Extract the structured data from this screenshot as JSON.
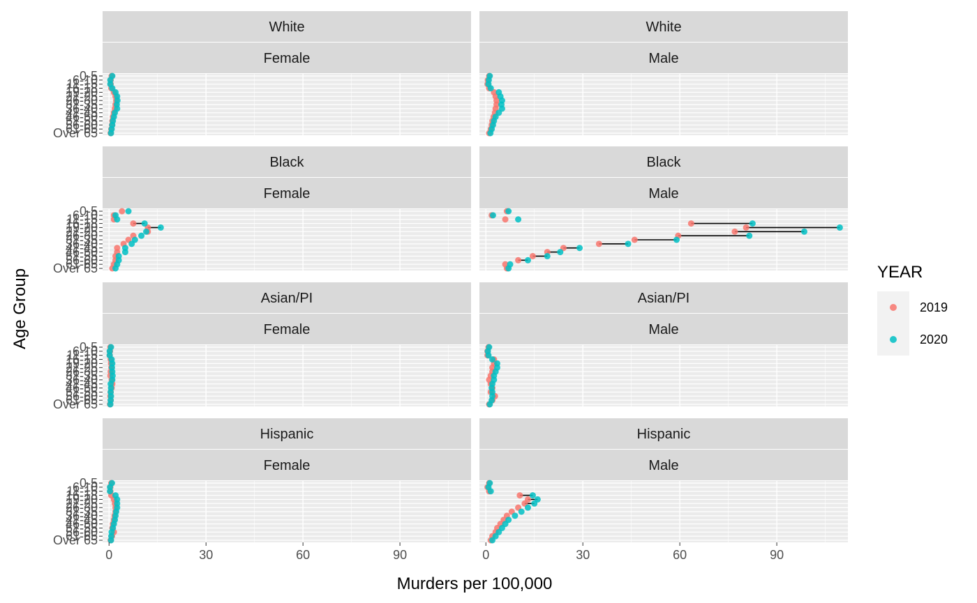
{
  "chart_data": {
    "type": "scatter",
    "facet_rows": [
      "White",
      "Black",
      "Asian/PI",
      "Hispanic"
    ],
    "facet_cols": [
      "Female",
      "Male"
    ],
    "xlabel": "Murders per 100,000",
    "ylabel": "Age Group",
    "xlim": [
      -2,
      112
    ],
    "x_ticks": [
      "0",
      "30",
      "60",
      "90"
    ],
    "x_tick_values": [
      0,
      30,
      60,
      90
    ],
    "age_groups": [
      "0-5",
      "6-10",
      "11-15",
      "16-18",
      "19-20",
      "21-25",
      "26-30",
      "31-35",
      "36-40",
      "41-45",
      "46-50",
      "51-55",
      "56-60",
      "61-65",
      "Over 65"
    ],
    "grid": true,
    "legend": {
      "title": "YEAR",
      "position": "right",
      "entries": [
        {
          "label": "2019",
          "color": "#F8766D"
        },
        {
          "label": "2020",
          "color": "#00BFC4"
        }
      ]
    },
    "panels": [
      {
        "race": "White",
        "sex": "Female",
        "y2019": [
          0.8,
          0.5,
          0.5,
          0.7,
          1.5,
          2.0,
          2.2,
          2.0,
          1.8,
          1.5,
          1.2,
          1.0,
          0.9,
          0.7,
          0.5
        ],
        "y2020": [
          1.0,
          0.4,
          0.4,
          1.0,
          2.0,
          2.5,
          2.6,
          2.4,
          2.5,
          1.8,
          1.5,
          1.2,
          1.0,
          0.8,
          0.6
        ]
      },
      {
        "race": "White",
        "sex": "Male",
        "y2019": [
          1.0,
          0.6,
          0.5,
          1.0,
          2.5,
          3.0,
          3.3,
          3.3,
          3.0,
          2.8,
          2.4,
          2.0,
          1.8,
          1.5,
          1.0
        ],
        "y2020": [
          1.2,
          0.9,
          0.8,
          1.5,
          4.0,
          4.5,
          5.0,
          4.8,
          5.0,
          4.0,
          3.0,
          2.5,
          2.2,
          1.8,
          1.4
        ]
      },
      {
        "race": "Black",
        "sex": "Female",
        "y2019": [
          4.0,
          1.5,
          1.5,
          7.5,
          12.0,
          12.0,
          7.5,
          6.0,
          4.5,
          2.5,
          2.5,
          2.0,
          2.0,
          1.5,
          1.0
        ],
        "y2020": [
          6.0,
          2.0,
          2.5,
          11.0,
          16.0,
          11.5,
          10.0,
          8.0,
          7.0,
          5.0,
          5.0,
          3.0,
          3.0,
          2.5,
          2.0
        ],
        "connectors": [
          3,
          4
        ]
      },
      {
        "race": "Black",
        "sex": "Male",
        "y2019": [
          6.5,
          1.8,
          6.0,
          63.5,
          80.5,
          77.0,
          59.5,
          46.0,
          35.0,
          24.0,
          19.0,
          14.5,
          10.0,
          6.0,
          6.5
        ],
        "y2020": [
          7.0,
          2.2,
          10.0,
          82.5,
          109.5,
          98.5,
          81.5,
          59.0,
          44.0,
          29.0,
          23.0,
          19.0,
          13.0,
          7.5,
          7.0
        ],
        "connectors": [
          3,
          4,
          5,
          6,
          7,
          8,
          9,
          10,
          11,
          12
        ]
      },
      {
        "race": "Asian/PI",
        "sex": "Female",
        "y2019": [
          0.4,
          0.3,
          0.2,
          0.5,
          0.6,
          0.7,
          0.5,
          0.4,
          0.8,
          1.0,
          0.8,
          0.5,
          0.4,
          0.5,
          0.3
        ],
        "y2020": [
          0.6,
          0.2,
          0.2,
          0.8,
          1.0,
          0.9,
          1.0,
          1.1,
          1.0,
          0.5,
          0.6,
          0.5,
          0.6,
          0.5,
          0.4
        ]
      },
      {
        "race": "Asian/PI",
        "sex": "Male",
        "y2019": [
          0.8,
          0.5,
          0.5,
          2.5,
          2.5,
          2.0,
          2.0,
          1.5,
          1.0,
          1.5,
          2.0,
          1.5,
          2.8,
          2.0,
          1.0
        ],
        "y2020": [
          1.0,
          0.6,
          0.8,
          2.0,
          3.5,
          3.5,
          3.0,
          2.5,
          2.5,
          2.0,
          1.8,
          2.0,
          2.0,
          1.8,
          1.2
        ]
      },
      {
        "race": "Hispanic",
        "sex": "Female",
        "y2019": [
          0.7,
          0.4,
          0.4,
          0.7,
          1.5,
          1.8,
          2.0,
          2.0,
          1.7,
          1.5,
          1.2,
          1.0,
          1.5,
          0.9,
          0.5
        ],
        "y2020": [
          0.9,
          0.3,
          0.3,
          2.0,
          2.5,
          2.5,
          2.5,
          2.2,
          2.0,
          1.8,
          1.5,
          1.2,
          0.8,
          0.7,
          0.6
        ]
      },
      {
        "race": "Hispanic",
        "sex": "Male",
        "y2019": [
          1.0,
          0.5,
          1.0,
          10.5,
          13.0,
          12.0,
          10.0,
          8.0,
          6.5,
          5.5,
          4.5,
          3.5,
          3.0,
          2.0,
          1.5
        ],
        "y2020": [
          1.2,
          0.8,
          1.5,
          14.5,
          16.0,
          15.0,
          13.0,
          11.0,
          9.0,
          7.0,
          6.0,
          5.0,
          4.0,
          3.0,
          2.0
        ],
        "connectors": [
          3,
          4,
          5
        ]
      }
    ]
  }
}
